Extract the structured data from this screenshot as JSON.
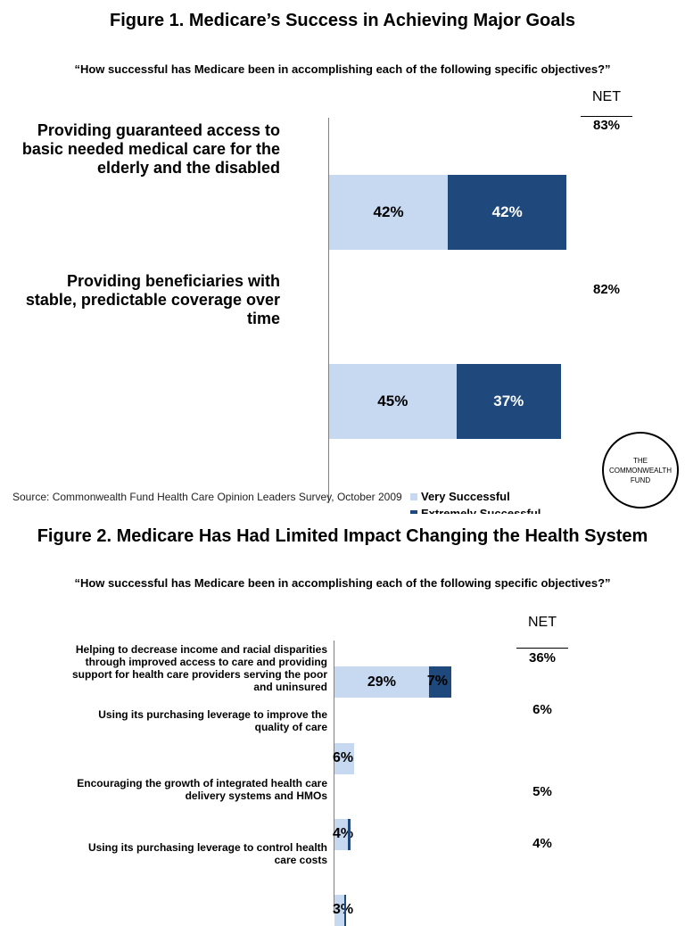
{
  "colors": {
    "very_successful": "#c6d9f1",
    "extremely_successful": "#1f497d"
  },
  "figure1": {
    "title": "Figure 1. Medicare’s Success in Achieving Major Goals",
    "subtitle": "“How successful has Medicare been in accomplishing each of the following specific objectives?”",
    "net_header": "NET",
    "source": "Source: Commonwealth Fund Health Care Opinion Leaders Survey, October 2009",
    "legend": [
      "Very Successful",
      "Extremely Successful"
    ],
    "logo": [
      "THE",
      "COMMONWEALTH",
      "FUND"
    ]
  },
  "figure2": {
    "title": "Figure 2. Medicare Has Had Limited Impact Changing the Health System",
    "subtitle": "“How successful has Medicare been in accomplishing each of the following specific objectives?”",
    "net_header": "NET"
  },
  "chart_data": [
    {
      "type": "bar",
      "orientation": "horizontal",
      "stacked": true,
      "title": "Figure 1. Medicare’s Success in Achieving Major Goals",
      "categories": [
        "Providing guaranteed access to basic needed medical care for the elderly and the disabled",
        "Providing beneficiaries with stable, predictable coverage over time"
      ],
      "series": [
        {
          "name": "Very Successful",
          "values": [
            42,
            45
          ]
        },
        {
          "name": "Extremely Successful",
          "values": [
            42,
            37
          ]
        }
      ],
      "data_labels": [
        [
          "42%",
          "42%"
        ],
        [
          "45%",
          "37%"
        ]
      ],
      "net": [
        "83%",
        "82%"
      ],
      "xlim": [
        0,
        100
      ]
    },
    {
      "type": "bar",
      "orientation": "horizontal",
      "stacked": true,
      "title": "Figure 2. Medicare Has Had Limited Impact Changing the Health System",
      "categories": [
        "Helping to decrease income and racial disparities through improved access to care and providing support for health care providers serving the poor and uninsured",
        "Using its purchasing leverage to improve the quality of care",
        "Encouraging the growth of integrated health care delivery systems and HMOs",
        "Using its purchasing leverage to control health care costs"
      ],
      "series": [
        {
          "name": "Very Successful",
          "values": [
            29,
            6,
            4,
            3
          ]
        },
        {
          "name": "Extremely Successful",
          "values": [
            7,
            0,
            1,
            0.5
          ]
        }
      ],
      "data_labels": [
        [
          "29%",
          "7%"
        ],
        [
          "6%"
        ],
        [
          "4%"
        ],
        [
          "3%"
        ]
      ],
      "net": [
        "36%",
        "6%",
        "5%",
        "4%"
      ],
      "xlim": [
        0,
        100
      ]
    }
  ]
}
